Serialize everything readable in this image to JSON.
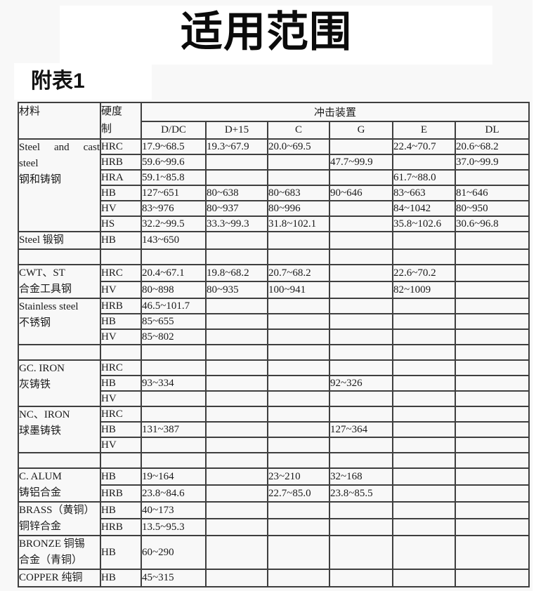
{
  "title": "适用范围",
  "appendix_label": "附表1",
  "colors": {
    "page_background": "#f8f8f8",
    "patch_background": "#ffffff",
    "table_border": "#3f3f3f",
    "text": "#1b1b1b",
    "title_text": "#0b0b0b"
  },
  "table": {
    "header": {
      "material": "材料",
      "hardness_scale_lines": [
        "硬度",
        "制"
      ],
      "impact_device": "冲击装置",
      "device_columns": [
        "D/DC",
        "D+15",
        "C",
        "G",
        "E",
        "DL"
      ]
    },
    "groups": [
      {
        "material_lines": [
          "Steel and cast",
          "steel",
          "钢和铸钢"
        ],
        "justify_first": true,
        "gap_before": false,
        "rows": [
          {
            "scale": "HRC",
            "values": [
              "17.9~68.5",
              "19.3~67.9",
              "20.0~69.5",
              "",
              "22.4~70.7",
              "20.6~68.2"
            ]
          },
          {
            "scale": "HRB",
            "values": [
              "59.6~99.6",
              "",
              "",
              "47.7~99.9",
              "",
              "37.0~99.9"
            ]
          },
          {
            "scale": "HRA",
            "values": [
              "59.1~85.8",
              "",
              "",
              "",
              "61.7~88.0",
              ""
            ]
          },
          {
            "scale": "HB",
            "values": [
              "127~651",
              "80~638",
              "80~683",
              "90~646",
              "83~663",
              "81~646"
            ]
          },
          {
            "scale": "HV",
            "values": [
              "83~976",
              "80~937",
              "80~996",
              "",
              "84~1042",
              "80~950"
            ]
          },
          {
            "scale": "HS",
            "values": [
              "32.2~99.5",
              "33.3~99.3",
              "31.8~102.1",
              "",
              "35.8~102.6",
              "30.6~96.8"
            ]
          }
        ]
      },
      {
        "material_lines": [
          "Steel 锻钢"
        ],
        "gap_before": false,
        "rows": [
          {
            "scale": "HB",
            "values": [
              "143~650",
              "",
              "",
              "",
              "",
              ""
            ]
          }
        ]
      },
      {
        "material_lines": [
          "CWT、ST",
          "合金工具钢"
        ],
        "gap_before": true,
        "rows": [
          {
            "scale": "HRC",
            "values": [
              "20.4~67.1",
              "19.8~68.2",
              "20.7~68.2",
              "",
              "22.6~70.2",
              ""
            ]
          },
          {
            "scale": "HV",
            "values": [
              "80~898",
              "80~935",
              "100~941",
              "",
              "82~1009",
              ""
            ]
          }
        ]
      },
      {
        "material_lines": [
          "Stainless steel",
          "不锈钢"
        ],
        "gap_before": false,
        "rows": [
          {
            "scale": "HRB",
            "values": [
              "46.5~101.7",
              "",
              "",
              "",
              "",
              ""
            ]
          },
          {
            "scale": "HB",
            "values": [
              "85~655",
              "",
              "",
              "",
              "",
              ""
            ]
          },
          {
            "scale": "HV",
            "values": [
              "85~802",
              "",
              "",
              "",
              "",
              ""
            ]
          }
        ]
      },
      {
        "material_lines": [
          "GC. IRON",
          "灰铸铁"
        ],
        "gap_before": true,
        "rows": [
          {
            "scale": "HRC",
            "values": [
              "",
              "",
              "",
              "",
              "",
              ""
            ]
          },
          {
            "scale": "HB",
            "values": [
              "93~334",
              "",
              "",
              "92~326",
              "",
              ""
            ]
          },
          {
            "scale": "HV",
            "values": [
              "",
              "",
              "",
              "",
              "",
              ""
            ]
          }
        ]
      },
      {
        "material_lines": [
          "NC、IRON",
          "球墨铸铁"
        ],
        "gap_before": false,
        "rows": [
          {
            "scale": "HRC",
            "values": [
              "",
              "",
              "",
              "",
              "",
              ""
            ]
          },
          {
            "scale": "HB",
            "values": [
              "131~387",
              "",
              "",
              "127~364",
              "",
              ""
            ]
          },
          {
            "scale": "HV",
            "values": [
              "",
              "",
              "",
              "",
              "",
              ""
            ]
          }
        ]
      },
      {
        "material_lines": [
          "C. ALUM",
          "铸铝合金"
        ],
        "gap_before": true,
        "rows": [
          {
            "scale": "HB",
            "values": [
              "19~164",
              "",
              "23~210",
              "32~168",
              "",
              ""
            ]
          },
          {
            "scale": "HRB",
            "values": [
              "23.8~84.6",
              "",
              "22.7~85.0",
              "23.8~85.5",
              "",
              ""
            ]
          }
        ]
      },
      {
        "material_lines": [
          "BRASS（黄铜）",
          "铜锌合金"
        ],
        "gap_before": false,
        "rows": [
          {
            "scale": "HB",
            "values": [
              "40~173",
              "",
              "",
              "",
              "",
              ""
            ]
          },
          {
            "scale": "HRB",
            "values": [
              "13.5~95.3",
              "",
              "",
              "",
              "",
              ""
            ]
          }
        ]
      },
      {
        "material_lines": [
          "BRONZE 铜锡",
          "合金（青铜）"
        ],
        "gap_before": false,
        "rows": [
          {
            "scale": "HB",
            "values": [
              "60~290",
              "",
              "",
              "",
              "",
              ""
            ]
          }
        ]
      },
      {
        "material_lines": [
          "COPPER 纯铜"
        ],
        "gap_before": false,
        "rows": [
          {
            "scale": "HB",
            "values": [
              "45~315",
              "",
              "",
              "",
              "",
              ""
            ]
          }
        ]
      }
    ]
  }
}
